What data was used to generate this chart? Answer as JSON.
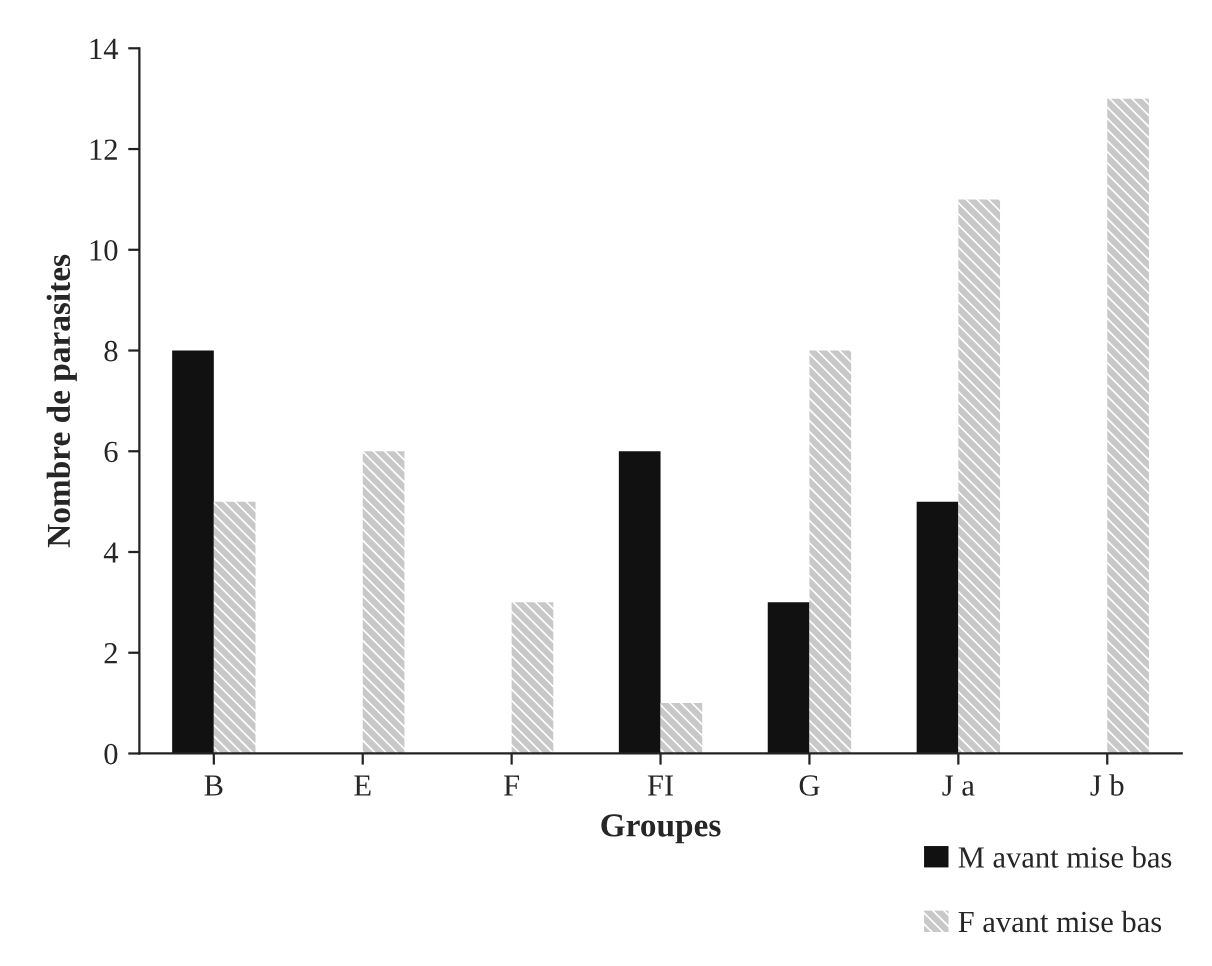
{
  "chart_data": {
    "type": "bar",
    "xlabel": "Groupes",
    "ylabel": "Nombre de parasites",
    "categories": [
      "B",
      "E",
      "F",
      "FI",
      "G",
      "J a",
      "J b"
    ],
    "series": [
      {
        "name": "M avant mise bas",
        "color": "#111111",
        "values": [
          8,
          0,
          0,
          6,
          3,
          5,
          0
        ]
      },
      {
        "name": "F avant mise bas",
        "color": "#c8c8c8",
        "values": [
          5,
          6,
          3,
          1,
          8,
          11,
          13
        ]
      }
    ],
    "ylim": [
      0,
      14
    ],
    "yticks": [
      0,
      2,
      4,
      6,
      8,
      10,
      12,
      14
    ],
    "grid": false,
    "legend": "bottom right"
  }
}
